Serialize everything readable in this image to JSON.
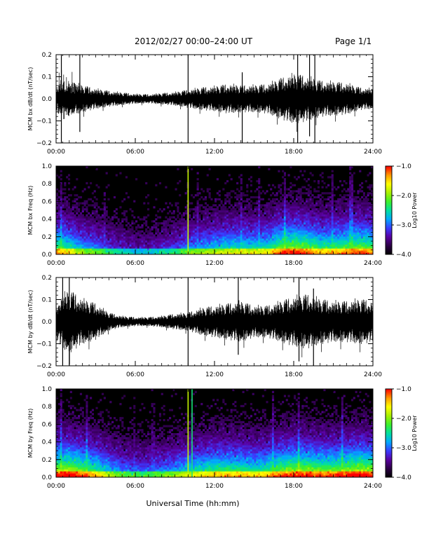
{
  "header": {
    "title": "2012/02/27  00:00–24:00 UT",
    "page": "Page 1/1"
  },
  "xlabel": "Universal Time (hh:mm)",
  "colors": {
    "trace": "#000000",
    "background": "#ffffff",
    "colormap": [
      "#000000",
      "#2b0044",
      "#5a00a0",
      "#3a3aff",
      "#00a8ff",
      "#00e0a0",
      "#3cf02a",
      "#a8f000",
      "#ffff00",
      "#ff9a00",
      "#ff0000"
    ]
  },
  "chart_data": [
    {
      "type": "line",
      "ylabel": "MCM bx dB/dt (nT/sec)",
      "xlim": [
        0,
        24
      ],
      "ylim": [
        -0.2,
        0.2
      ],
      "x_ticks": [
        "00:00",
        "06:00",
        "12:00",
        "18:00",
        "24:00"
      ],
      "y_ticks": [
        "−0.2",
        "−0.1",
        "0.0",
        "0.1",
        "0.2"
      ],
      "y_tick_values": [
        -0.2,
        -0.1,
        0.0,
        0.1,
        0.2
      ],
      "envelope": {
        "hour": [
          0,
          0.5,
          1,
          2,
          3,
          4,
          5,
          6,
          7,
          8,
          9,
          10,
          11,
          12,
          13,
          14,
          15,
          16,
          17,
          18,
          19,
          20,
          21,
          22,
          23,
          24
        ],
        "amplitude": [
          0.06,
          0.09,
          0.08,
          0.06,
          0.045,
          0.035,
          0.028,
          0.022,
          0.02,
          0.025,
          0.03,
          0.04,
          0.05,
          0.055,
          0.065,
          0.06,
          0.06,
          0.065,
          0.09,
          0.11,
          0.1,
          0.08,
          0.075,
          0.07,
          0.05,
          0.045
        ]
      },
      "spikes": [
        {
          "hour": 0.4,
          "min": -0.2,
          "max": 0.2
        },
        {
          "hour": 1.8,
          "min": -0.15,
          "max": 0.2
        },
        {
          "hour": 10.0,
          "min": -0.2,
          "max": 0.2
        },
        {
          "hour": 14.1,
          "min": -0.2,
          "max": 0.12
        },
        {
          "hour": 18.3,
          "min": -0.2,
          "max": 0.2
        },
        {
          "hour": 19.2,
          "min": -0.17,
          "max": 0.2
        },
        {
          "hour": 19.6,
          "min": -0.2,
          "max": 0.2
        }
      ]
    },
    {
      "type": "heatmap",
      "ylabel": "MCM bx Freq (Hz)",
      "xlim": [
        0,
        24
      ],
      "ylim": [
        0,
        1.0
      ],
      "x_ticks": [
        "00:00",
        "06:00",
        "12:00",
        "18:00",
        "24:00"
      ],
      "y_ticks": [
        "0.0",
        "0.2",
        "0.4",
        "0.6",
        "0.8",
        "1.0"
      ],
      "y_tick_values": [
        0,
        0.2,
        0.4,
        0.6,
        0.8,
        1.0
      ],
      "colorbar": {
        "label": "Log10 Power",
        "range": [
          -4.0,
          -1.0
        ],
        "ticks": [
          "−4.0",
          "−3.0",
          "−2.0",
          "−1.0"
        ],
        "tick_values": [
          -4.0,
          -3.0,
          -2.0,
          -1.0
        ]
      },
      "activity": {
        "hour": [
          0,
          1,
          2,
          3,
          4,
          5,
          6,
          7,
          8,
          9,
          10,
          11,
          12,
          13,
          14,
          15,
          16,
          17,
          18,
          19,
          20,
          21,
          22,
          23,
          24
        ],
        "level": [
          0.75,
          0.65,
          0.5,
          0.45,
          0.35,
          0.3,
          0.25,
          0.25,
          0.3,
          0.35,
          0.45,
          0.5,
          0.55,
          0.6,
          0.6,
          0.6,
          0.62,
          0.8,
          0.85,
          0.8,
          0.7,
          0.7,
          0.75,
          0.8,
          0.75
        ]
      },
      "bright_lines": [
        {
          "hour": 10.0,
          "power": -1.8
        }
      ]
    },
    {
      "type": "line",
      "ylabel": "MCM by dB/dt (nT/sec)",
      "xlim": [
        0,
        24
      ],
      "ylim": [
        -0.2,
        0.2
      ],
      "x_ticks": [
        "00:00",
        "06:00",
        "12:00",
        "18:00",
        "24:00"
      ],
      "y_ticks": [
        "−0.2",
        "−0.1",
        "0.0",
        "0.1",
        "0.2"
      ],
      "y_tick_values": [
        -0.2,
        -0.1,
        0.0,
        0.1,
        0.2
      ],
      "envelope": {
        "hour": [
          0,
          0.5,
          1,
          1.5,
          2,
          3,
          4,
          5,
          6,
          7,
          8,
          9,
          10,
          11,
          12,
          13,
          14,
          15,
          16,
          17,
          18,
          19,
          20,
          21,
          22,
          23,
          24
        ],
        "amplitude": [
          0.08,
          0.12,
          0.14,
          0.12,
          0.1,
          0.08,
          0.04,
          0.025,
          0.02,
          0.02,
          0.025,
          0.035,
          0.04,
          0.06,
          0.07,
          0.08,
          0.09,
          0.07,
          0.07,
          0.09,
          0.11,
          0.12,
          0.1,
          0.09,
          0.09,
          0.1,
          0.09
        ]
      },
      "spikes": [
        {
          "hour": 0.5,
          "min": -0.2,
          "max": 0.2
        },
        {
          "hour": 1.0,
          "min": -0.2,
          "max": 0.2
        },
        {
          "hour": 10.0,
          "min": -0.2,
          "max": 0.2
        },
        {
          "hour": 13.8,
          "min": -0.15,
          "max": 0.2
        },
        {
          "hour": 18.4,
          "min": -0.18,
          "max": 0.2
        },
        {
          "hour": 19.5,
          "min": -0.2,
          "max": 0.15
        }
      ]
    },
    {
      "type": "heatmap",
      "ylabel": "MCM by Freq (Hz)",
      "xlim": [
        0,
        24
      ],
      "ylim": [
        0,
        1.0
      ],
      "x_ticks": [
        "00:00",
        "06:00",
        "12:00",
        "18:00",
        "24:00"
      ],
      "y_ticks": [
        "0.0",
        "0.2",
        "0.4",
        "0.6",
        "0.8",
        "1.0"
      ],
      "y_tick_values": [
        0,
        0.2,
        0.4,
        0.6,
        0.8,
        1.0
      ],
      "colorbar": {
        "label": "Log10 Power",
        "range": [
          -4.0,
          -1.0
        ],
        "ticks": [
          "−4.0",
          "−3.0",
          "−2.0",
          "−1.0"
        ],
        "tick_values": [
          -4.0,
          -3.0,
          -2.0,
          -1.0
        ]
      },
      "activity": {
        "hour": [
          0,
          1,
          2,
          3,
          4,
          5,
          6,
          7,
          8,
          9,
          10,
          11,
          12,
          13,
          14,
          15,
          16,
          17,
          18,
          19,
          20,
          21,
          22,
          23,
          24
        ],
        "level": [
          0.85,
          0.9,
          0.8,
          0.7,
          0.55,
          0.45,
          0.4,
          0.4,
          0.45,
          0.5,
          0.6,
          0.65,
          0.7,
          0.7,
          0.7,
          0.65,
          0.7,
          0.8,
          0.85,
          0.85,
          0.8,
          0.8,
          0.85,
          0.9,
          0.85
        ]
      },
      "bright_lines": [
        {
          "hour": 10.0,
          "power": -1.8
        },
        {
          "hour": 10.3,
          "power": -2.4
        }
      ]
    }
  ]
}
